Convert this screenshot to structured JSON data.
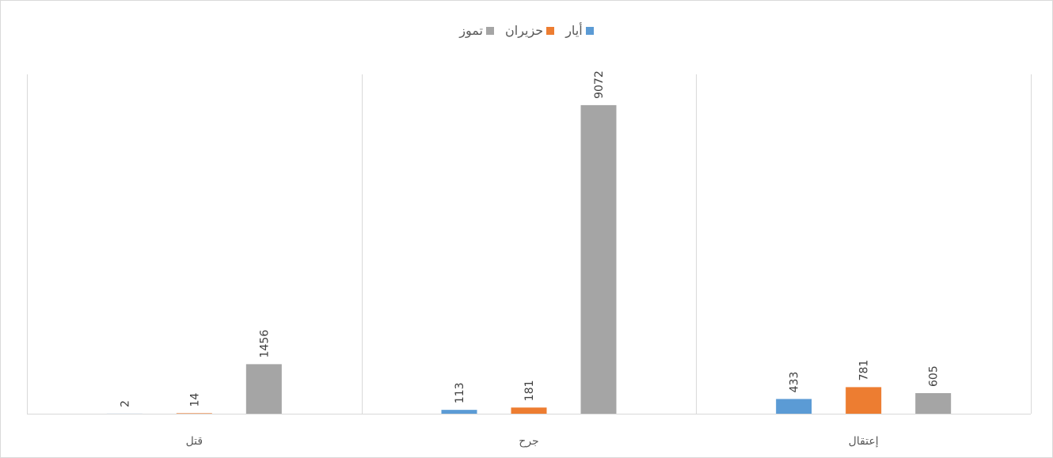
{
  "chart_data": {
    "type": "bar",
    "categories": [
      "قتل",
      "جرح",
      "إعتقال"
    ],
    "series": [
      {
        "name": "أيار",
        "color": "#5b9bd5",
        "values": [
          2,
          113,
          433
        ]
      },
      {
        "name": "حزيران",
        "color": "#ed7d31",
        "values": [
          14,
          181,
          781
        ]
      },
      {
        "name": "تموز",
        "color": "#a5a5a5",
        "values": [
          1456,
          9072,
          605
        ]
      }
    ],
    "ylim": [
      0,
      10000
    ],
    "grid": false,
    "legend_position": "top",
    "title": "",
    "xlabel": "",
    "ylabel": ""
  }
}
